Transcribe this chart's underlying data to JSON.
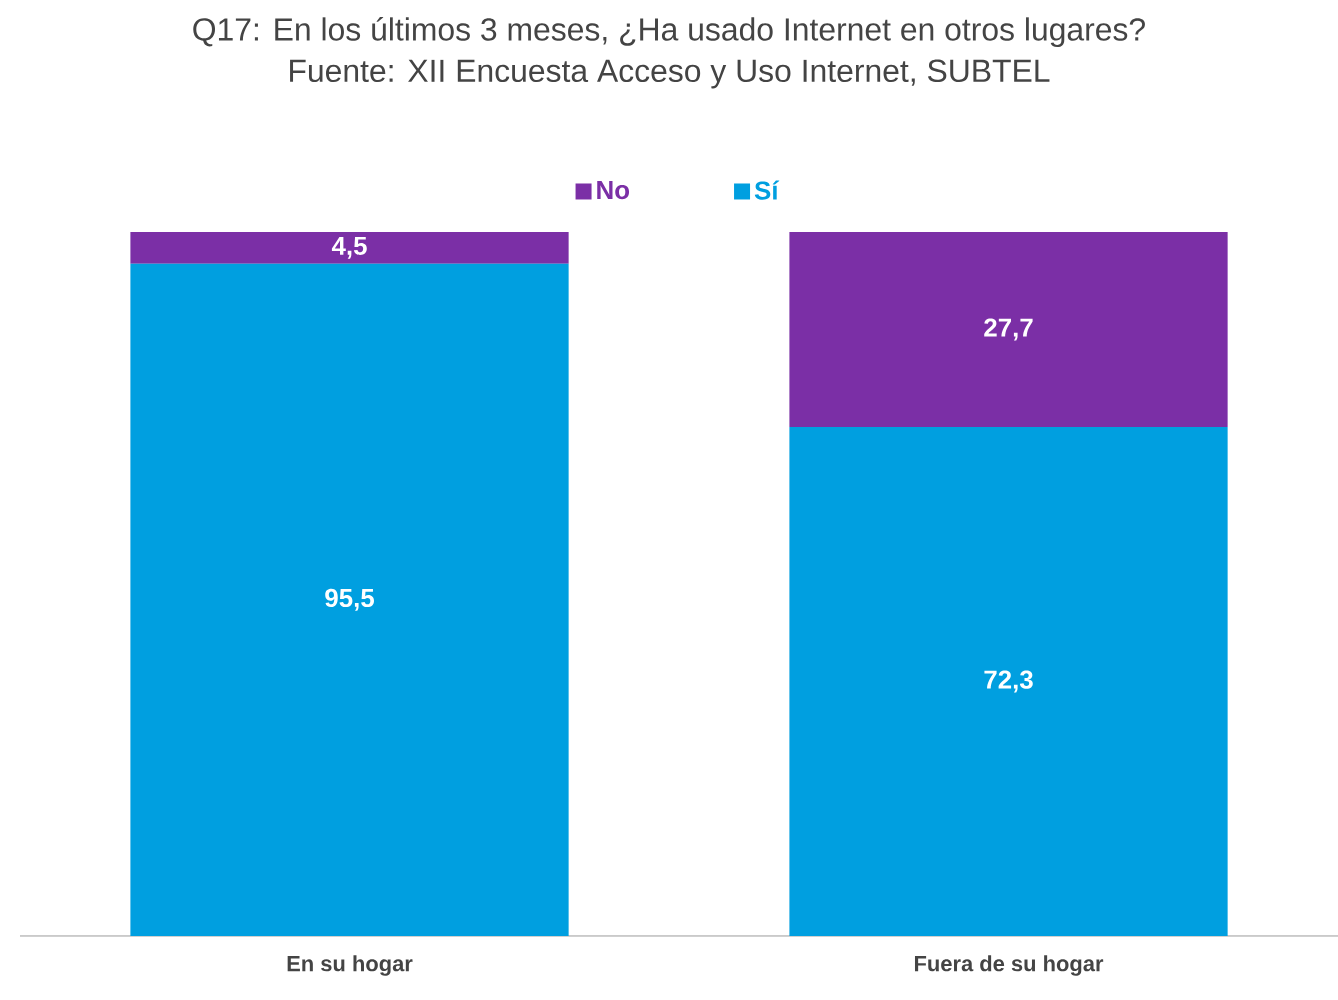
{
  "chart_data": {
    "type": "bar",
    "stacked": true,
    "title": "Q17: En los últimos 3 meses, ¿Ha usado Internet en otros lugares?",
    "subtitle": "Fuente: XII Encuesta Acceso y Uso Internet, SUBTEL",
    "categories": [
      "En su hogar",
      "Fuera de su hogar"
    ],
    "legend": "top",
    "series": [
      {
        "name": "Sí",
        "color": "#009fe0",
        "values": [
          95.5,
          72.3
        ],
        "value_labels": [
          "95,5",
          "72,3"
        ]
      },
      {
        "name": "No",
        "color": "#7b2fa6",
        "values": [
          4.5,
          27.7
        ],
        "value_labels": [
          "4,5",
          "27,7"
        ]
      }
    ]
  }
}
